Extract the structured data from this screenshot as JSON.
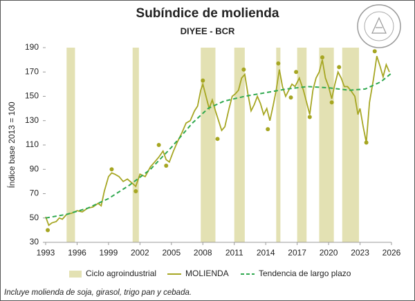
{
  "chart_data": {
    "type": "line",
    "title": "Subíndice de molienda",
    "subtitle": "DIYEE - BCR",
    "y_label": "Índice base 2013 = 100",
    "note": "Incluye molienda de soja, girasol, trigo pan y cebada.",
    "xlim": [
      1993,
      2026
    ],
    "xticks": [
      1993,
      1996,
      1999,
      2002,
      2005,
      2008,
      2011,
      2014,
      2017,
      2020,
      2023,
      2026
    ],
    "ylim": [
      30,
      190
    ],
    "yticks": [
      30,
      50,
      70,
      90,
      110,
      130,
      150,
      170,
      190
    ],
    "bands": {
      "name": "Ciclo agroindustrial",
      "color": "#e3e1b3",
      "ranges": [
        [
          1995.0,
          1995.8
        ],
        [
          2001.3,
          2001.9
        ],
        [
          2007.8,
          2009.2
        ],
        [
          2011.0,
          2012.0
        ],
        [
          2015.0,
          2015.4
        ],
        [
          2017.0,
          2017.9
        ],
        [
          2019.1,
          2020.5
        ],
        [
          2021.3,
          2022.9
        ]
      ]
    },
    "series": [
      {
        "name": "MOLIENDA",
        "color": "#a6a622",
        "dash": false,
        "x": [
          1993.0,
          1993.3,
          1993.6,
          1994.0,
          1994.3,
          1994.6,
          1995.0,
          1995.5,
          1996.0,
          1996.5,
          1997.0,
          1997.5,
          1998.0,
          1998.3,
          1998.6,
          1999.0,
          1999.3,
          1999.6,
          2000.0,
          2000.4,
          2000.8,
          2001.2,
          2001.6,
          2002.0,
          2002.5,
          2003.0,
          2003.4,
          2003.8,
          2004.2,
          2004.5,
          2004.8,
          2005.2,
          2005.6,
          2006.0,
          2006.4,
          2006.8,
          2007.2,
          2007.5,
          2007.8,
          2008.0,
          2008.3,
          2008.6,
          2008.9,
          2009.2,
          2009.5,
          2009.8,
          2010.1,
          2010.5,
          2010.8,
          2011.1,
          2011.4,
          2011.7,
          2012.0,
          2012.3,
          2012.6,
          2012.9,
          2013.2,
          2013.5,
          2013.8,
          2014.1,
          2014.4,
          2014.7,
          2015.0,
          2015.3,
          2015.6,
          2015.9,
          2016.2,
          2016.5,
          2016.8,
          2017.2,
          2017.6,
          2017.9,
          2018.2,
          2018.5,
          2018.8,
          2019.1,
          2019.4,
          2019.7,
          2020.0,
          2020.3,
          2020.6,
          2020.9,
          2021.2,
          2021.5,
          2021.8,
          2022.1,
          2022.5,
          2022.8,
          2023.0,
          2023.3,
          2023.6,
          2023.9,
          2024.3,
          2024.6,
          2024.9,
          2025.2,
          2025.5,
          2025.8
        ],
        "values": [
          51,
          44,
          46,
          47,
          50,
          49,
          53,
          54,
          56,
          55,
          58,
          59,
          62,
          60,
          72,
          84,
          87,
          86,
          84,
          80,
          82,
          79,
          76,
          86,
          84,
          92,
          96,
          100,
          105,
          98,
          96,
          105,
          113,
          120,
          128,
          130,
          138,
          142,
          155,
          160,
          150,
          140,
          147,
          138,
          130,
          122,
          125,
          140,
          150,
          152,
          155,
          165,
          168,
          152,
          138,
          143,
          150,
          144,
          135,
          140,
          130,
          142,
          155,
          172,
          158,
          150,
          155,
          160,
          158,
          165,
          155,
          145,
          135,
          155,
          165,
          170,
          180,
          165,
          158,
          148,
          160,
          170,
          165,
          158,
          158,
          155,
          150,
          135,
          140,
          125,
          112,
          145,
          165,
          183,
          175,
          166,
          176,
          170
        ]
      },
      {
        "name": "Tendencia de largo plazo",
        "color": "#2ea84e",
        "dash": true,
        "x": [
          1993,
          1995,
          1997,
          1999,
          2001,
          2003,
          2005,
          2007,
          2008.5,
          2010,
          2012,
          2014,
          2016,
          2018,
          2020,
          2022,
          2023.5,
          2025,
          2026
        ],
        "values": [
          50,
          53,
          58,
          66,
          77,
          90,
          108,
          128,
          140,
          146,
          150,
          153,
          156,
          158,
          157,
          155,
          156,
          162,
          169
        ]
      }
    ],
    "markers": {
      "color": "#a6a622",
      "x": [
        1993.2,
        1999.3,
        2001.6,
        2003.8,
        2004.5,
        2008.0,
        2009.4,
        2011.9,
        2014.2,
        2015.2,
        2016.4,
        2016.9,
        2018.2,
        2019.4,
        2020.3,
        2021.0,
        2023.6,
        2024.4
      ],
      "values": [
        40,
        90,
        72,
        110,
        93,
        163,
        115,
        172,
        123,
        177,
        149,
        170,
        133,
        182,
        145,
        174,
        112,
        187
      ]
    }
  }
}
